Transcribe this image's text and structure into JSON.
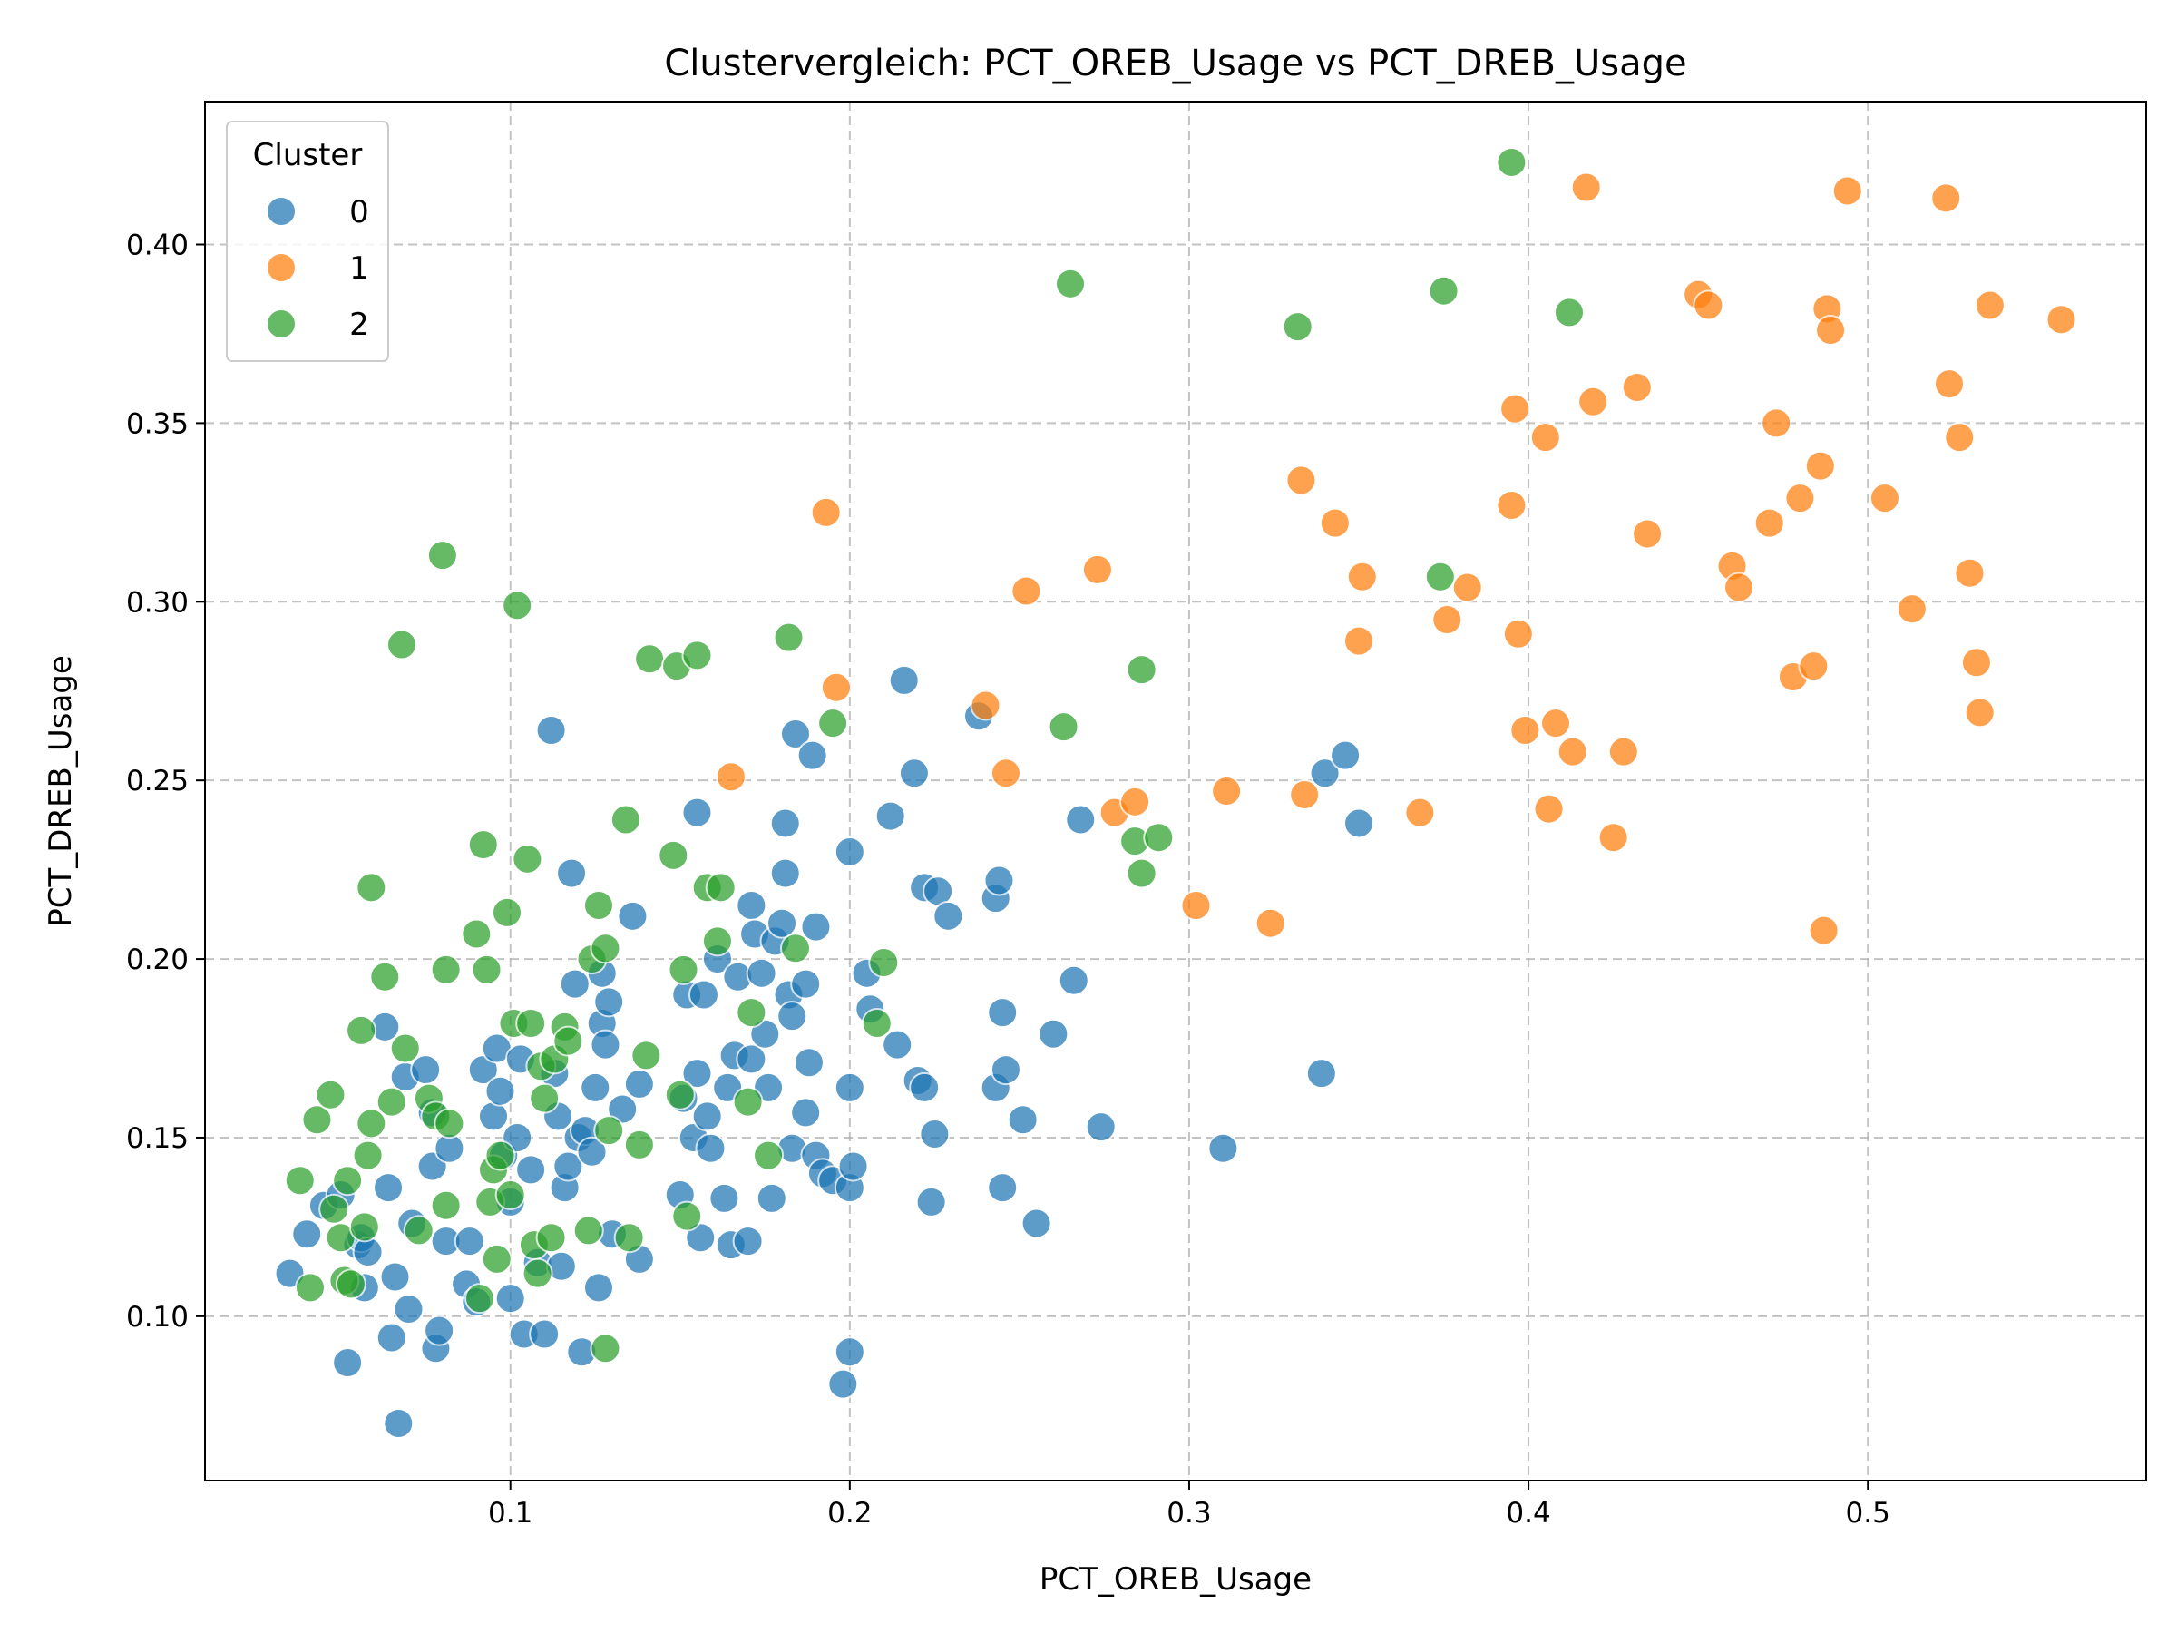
{
  "chart_data": {
    "type": "scatter",
    "title": "Clustervergleich: PCT_OREB_Usage vs PCT_DREB_Usage",
    "xlabel": "PCT_OREB_Usage",
    "ylabel": "PCT_DREB_Usage",
    "xlim": [
      0.01,
      0.582
    ],
    "ylim": [
      0.054,
      0.44
    ],
    "xticks": [
      0.1,
      0.2,
      0.3,
      0.4,
      0.5
    ],
    "xtick_labels": [
      "0.1",
      "0.2",
      "0.3",
      "0.4",
      "0.5"
    ],
    "yticks": [
      0.1,
      0.15,
      0.2,
      0.25,
      0.3,
      0.35,
      0.4
    ],
    "ytick_labels": [
      "0.10",
      "0.15",
      "0.20",
      "0.25",
      "0.30",
      "0.35",
      "0.40"
    ],
    "grid": true,
    "legend": {
      "title": "Cluster",
      "position": "top-left"
    },
    "series": [
      {
        "name": "0",
        "color": "#1f77b4",
        "points": [
          [
            0.035,
            0.112
          ],
          [
            0.04,
            0.123
          ],
          [
            0.045,
            0.131
          ],
          [
            0.05,
            0.134
          ],
          [
            0.052,
            0.087
          ],
          [
            0.055,
            0.12
          ],
          [
            0.056,
            0.122
          ],
          [
            0.058,
            0.118
          ],
          [
            0.057,
            0.108
          ],
          [
            0.063,
            0.181
          ],
          [
            0.064,
            0.136
          ],
          [
            0.065,
            0.094
          ],
          [
            0.066,
            0.111
          ],
          [
            0.067,
            0.07
          ],
          [
            0.069,
            0.167
          ],
          [
            0.07,
            0.102
          ],
          [
            0.071,
            0.126
          ],
          [
            0.075,
            0.169
          ],
          [
            0.077,
            0.142
          ],
          [
            0.077,
            0.157
          ],
          [
            0.078,
            0.091
          ],
          [
            0.079,
            0.096
          ],
          [
            0.082,
            0.147
          ],
          [
            0.081,
            0.121
          ],
          [
            0.087,
            0.109
          ],
          [
            0.088,
            0.121
          ],
          [
            0.09,
            0.104
          ],
          [
            0.092,
            0.169
          ],
          [
            0.095,
            0.156
          ],
          [
            0.096,
            0.175
          ],
          [
            0.097,
            0.163
          ],
          [
            0.098,
            0.145
          ],
          [
            0.1,
            0.105
          ],
          [
            0.1,
            0.132
          ],
          [
            0.102,
            0.15
          ],
          [
            0.103,
            0.172
          ],
          [
            0.104,
            0.095
          ],
          [
            0.106,
            0.141
          ],
          [
            0.108,
            0.115
          ],
          [
            0.11,
            0.095
          ],
          [
            0.112,
            0.264
          ],
          [
            0.113,
            0.168
          ],
          [
            0.114,
            0.156
          ],
          [
            0.115,
            0.114
          ],
          [
            0.116,
            0.136
          ],
          [
            0.117,
            0.142
          ],
          [
            0.118,
            0.224
          ],
          [
            0.119,
            0.193
          ],
          [
            0.12,
            0.15
          ],
          [
            0.121,
            0.09
          ],
          [
            0.122,
            0.152
          ],
          [
            0.124,
            0.146
          ],
          [
            0.125,
            0.164
          ],
          [
            0.126,
            0.108
          ],
          [
            0.127,
            0.196
          ],
          [
            0.127,
            0.182
          ],
          [
            0.128,
            0.176
          ],
          [
            0.129,
            0.188
          ],
          [
            0.13,
            0.123
          ],
          [
            0.133,
            0.158
          ],
          [
            0.136,
            0.212
          ],
          [
            0.138,
            0.116
          ],
          [
            0.138,
            0.165
          ],
          [
            0.15,
            0.134
          ],
          [
            0.151,
            0.161
          ],
          [
            0.152,
            0.19
          ],
          [
            0.154,
            0.15
          ],
          [
            0.155,
            0.241
          ],
          [
            0.155,
            0.168
          ],
          [
            0.156,
            0.122
          ],
          [
            0.157,
            0.19
          ],
          [
            0.158,
            0.156
          ],
          [
            0.159,
            0.147
          ],
          [
            0.161,
            0.2
          ],
          [
            0.163,
            0.133
          ],
          [
            0.164,
            0.164
          ],
          [
            0.165,
            0.12
          ],
          [
            0.166,
            0.173
          ],
          [
            0.167,
            0.195
          ],
          [
            0.17,
            0.121
          ],
          [
            0.171,
            0.215
          ],
          [
            0.171,
            0.172
          ],
          [
            0.172,
            0.207
          ],
          [
            0.174,
            0.196
          ],
          [
            0.175,
            0.179
          ],
          [
            0.176,
            0.164
          ],
          [
            0.177,
            0.133
          ],
          [
            0.178,
            0.205
          ],
          [
            0.18,
            0.21
          ],
          [
            0.181,
            0.238
          ],
          [
            0.181,
            0.224
          ],
          [
            0.182,
            0.19
          ],
          [
            0.183,
            0.147
          ],
          [
            0.183,
            0.184
          ],
          [
            0.184,
            0.263
          ],
          [
            0.187,
            0.193
          ],
          [
            0.187,
            0.157
          ],
          [
            0.188,
            0.171
          ],
          [
            0.189,
            0.257
          ],
          [
            0.19,
            0.209
          ],
          [
            0.19,
            0.145
          ],
          [
            0.192,
            0.14
          ],
          [
            0.195,
            0.138
          ],
          [
            0.198,
            0.081
          ],
          [
            0.2,
            0.09
          ],
          [
            0.2,
            0.164
          ],
          [
            0.2,
            0.23
          ],
          [
            0.2,
            0.136
          ],
          [
            0.201,
            0.142
          ],
          [
            0.205,
            0.196
          ],
          [
            0.206,
            0.186
          ],
          [
            0.212,
            0.24
          ],
          [
            0.214,
            0.176
          ],
          [
            0.216,
            0.278
          ],
          [
            0.219,
            0.252
          ],
          [
            0.22,
            0.166
          ],
          [
            0.222,
            0.164
          ],
          [
            0.222,
            0.22
          ],
          [
            0.224,
            0.132
          ],
          [
            0.225,
            0.151
          ],
          [
            0.226,
            0.219
          ],
          [
            0.229,
            0.212
          ],
          [
            0.238,
            0.268
          ],
          [
            0.243,
            0.217
          ],
          [
            0.243,
            0.164
          ],
          [
            0.244,
            0.222
          ],
          [
            0.245,
            0.136
          ],
          [
            0.245,
            0.185
          ],
          [
            0.246,
            0.169
          ],
          [
            0.251,
            0.155
          ],
          [
            0.255,
            0.126
          ],
          [
            0.26,
            0.179
          ],
          [
            0.266,
            0.194
          ],
          [
            0.268,
            0.239
          ],
          [
            0.274,
            0.153
          ],
          [
            0.31,
            0.147
          ],
          [
            0.339,
            0.168
          ],
          [
            0.34,
            0.252
          ],
          [
            0.346,
            0.257
          ],
          [
            0.35,
            0.238
          ]
        ]
      },
      {
        "name": "1",
        "color": "#ff7f0e",
        "points": [
          [
            0.165,
            0.251
          ],
          [
            0.193,
            0.325
          ],
          [
            0.196,
            0.276
          ],
          [
            0.24,
            0.271
          ],
          [
            0.246,
            0.252
          ],
          [
            0.252,
            0.303
          ],
          [
            0.273,
            0.309
          ],
          [
            0.278,
            0.241
          ],
          [
            0.284,
            0.244
          ],
          [
            0.302,
            0.215
          ],
          [
            0.311,
            0.247
          ],
          [
            0.324,
            0.21
          ],
          [
            0.333,
            0.334
          ],
          [
            0.334,
            0.246
          ],
          [
            0.343,
            0.322
          ],
          [
            0.35,
            0.289
          ],
          [
            0.351,
            0.307
          ],
          [
            0.368,
            0.241
          ],
          [
            0.376,
            0.295
          ],
          [
            0.382,
            0.304
          ],
          [
            0.395,
            0.327
          ],
          [
            0.396,
            0.354
          ],
          [
            0.397,
            0.291
          ],
          [
            0.399,
            0.264
          ],
          [
            0.405,
            0.346
          ],
          [
            0.406,
            0.242
          ],
          [
            0.408,
            0.266
          ],
          [
            0.413,
            0.258
          ],
          [
            0.417,
            0.416
          ],
          [
            0.419,
            0.356
          ],
          [
            0.425,
            0.234
          ],
          [
            0.428,
            0.258
          ],
          [
            0.432,
            0.36
          ],
          [
            0.435,
            0.319
          ],
          [
            0.45,
            0.386
          ],
          [
            0.453,
            0.383
          ],
          [
            0.46,
            0.31
          ],
          [
            0.462,
            0.304
          ],
          [
            0.471,
            0.322
          ],
          [
            0.473,
            0.35
          ],
          [
            0.478,
            0.279
          ],
          [
            0.48,
            0.329
          ],
          [
            0.484,
            0.282
          ],
          [
            0.486,
            0.338
          ],
          [
            0.487,
            0.208
          ],
          [
            0.488,
            0.382
          ],
          [
            0.489,
            0.376
          ],
          [
            0.494,
            0.415
          ],
          [
            0.505,
            0.329
          ],
          [
            0.513,
            0.298
          ],
          [
            0.523,
            0.413
          ],
          [
            0.524,
            0.361
          ],
          [
            0.527,
            0.346
          ],
          [
            0.53,
            0.308
          ],
          [
            0.532,
            0.283
          ],
          [
            0.533,
            0.269
          ],
          [
            0.536,
            0.383
          ],
          [
            0.557,
            0.379
          ]
        ]
      },
      {
        "name": "2",
        "color": "#2ca02c",
        "points": [
          [
            0.038,
            0.138
          ],
          [
            0.041,
            0.108
          ],
          [
            0.043,
            0.155
          ],
          [
            0.047,
            0.162
          ],
          [
            0.048,
            0.13
          ],
          [
            0.05,
            0.122
          ],
          [
            0.051,
            0.11
          ],
          [
            0.052,
            0.138
          ],
          [
            0.053,
            0.109
          ],
          [
            0.056,
            0.18
          ],
          [
            0.057,
            0.125
          ],
          [
            0.058,
            0.145
          ],
          [
            0.059,
            0.154
          ],
          [
            0.059,
            0.22
          ],
          [
            0.063,
            0.195
          ],
          [
            0.065,
            0.16
          ],
          [
            0.068,
            0.288
          ],
          [
            0.069,
            0.175
          ],
          [
            0.073,
            0.124
          ],
          [
            0.076,
            0.161
          ],
          [
            0.078,
            0.156
          ],
          [
            0.08,
            0.313
          ],
          [
            0.081,
            0.131
          ],
          [
            0.081,
            0.197
          ],
          [
            0.082,
            0.154
          ],
          [
            0.09,
            0.207
          ],
          [
            0.091,
            0.105
          ],
          [
            0.092,
            0.232
          ],
          [
            0.093,
            0.197
          ],
          [
            0.094,
            0.132
          ],
          [
            0.095,
            0.141
          ],
          [
            0.096,
            0.116
          ],
          [
            0.097,
            0.145
          ],
          [
            0.099,
            0.213
          ],
          [
            0.1,
            0.134
          ],
          [
            0.101,
            0.182
          ],
          [
            0.102,
            0.299
          ],
          [
            0.105,
            0.228
          ],
          [
            0.106,
            0.182
          ],
          [
            0.107,
            0.12
          ],
          [
            0.108,
            0.112
          ],
          [
            0.109,
            0.17
          ],
          [
            0.11,
            0.161
          ],
          [
            0.112,
            0.122
          ],
          [
            0.113,
            0.172
          ],
          [
            0.116,
            0.181
          ],
          [
            0.117,
            0.177
          ],
          [
            0.123,
            0.124
          ],
          [
            0.124,
            0.2
          ],
          [
            0.126,
            0.215
          ],
          [
            0.128,
            0.091
          ],
          [
            0.128,
            0.203
          ],
          [
            0.129,
            0.152
          ],
          [
            0.134,
            0.239
          ],
          [
            0.135,
            0.122
          ],
          [
            0.138,
            0.148
          ],
          [
            0.14,
            0.173
          ],
          [
            0.141,
            0.284
          ],
          [
            0.148,
            0.229
          ],
          [
            0.149,
            0.282
          ],
          [
            0.15,
            0.162
          ],
          [
            0.151,
            0.197
          ],
          [
            0.152,
            0.128
          ],
          [
            0.155,
            0.285
          ],
          [
            0.158,
            0.22
          ],
          [
            0.161,
            0.205
          ],
          [
            0.162,
            0.22
          ],
          [
            0.17,
            0.16
          ],
          [
            0.171,
            0.185
          ],
          [
            0.176,
            0.145
          ],
          [
            0.182,
            0.29
          ],
          [
            0.184,
            0.203
          ],
          [
            0.195,
            0.266
          ],
          [
            0.208,
            0.182
          ],
          [
            0.21,
            0.199
          ],
          [
            0.263,
            0.265
          ],
          [
            0.265,
            0.389
          ],
          [
            0.284,
            0.233
          ],
          [
            0.286,
            0.224
          ],
          [
            0.286,
            0.281
          ],
          [
            0.291,
            0.234
          ],
          [
            0.332,
            0.377
          ],
          [
            0.374,
            0.307
          ],
          [
            0.375,
            0.387
          ],
          [
            0.395,
            0.423
          ],
          [
            0.412,
            0.381
          ]
        ]
      }
    ]
  }
}
